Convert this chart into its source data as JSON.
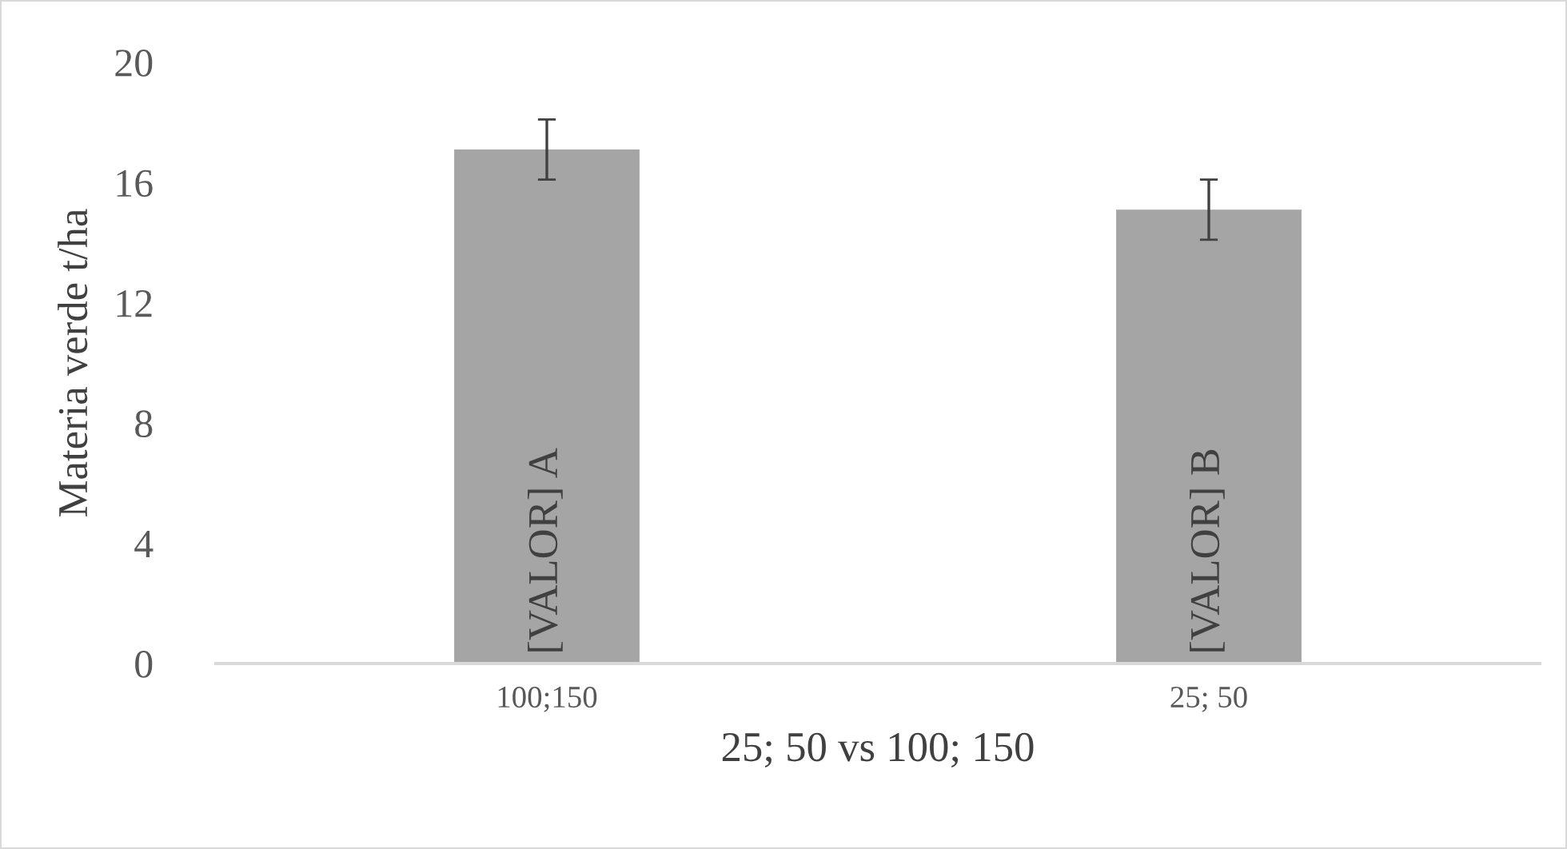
{
  "chart_data": {
    "type": "bar",
    "xlabel": "25; 50 vs 100; 150",
    "ylabel": "Materia verde t/ha",
    "categories": [
      "100;150",
      "25; 50"
    ],
    "values": [
      17.1,
      15.1
    ],
    "errors": [
      1.0,
      1.0
    ],
    "color": "#a5a5a5",
    "value_labels": [
      "[VALOR] A",
      "[VALOR] B"
    ],
    "ylim": [
      0,
      20
    ],
    "yticks": [
      0,
      4,
      8,
      12,
      16,
      20
    ],
    "grid": false,
    "legend": false
  }
}
